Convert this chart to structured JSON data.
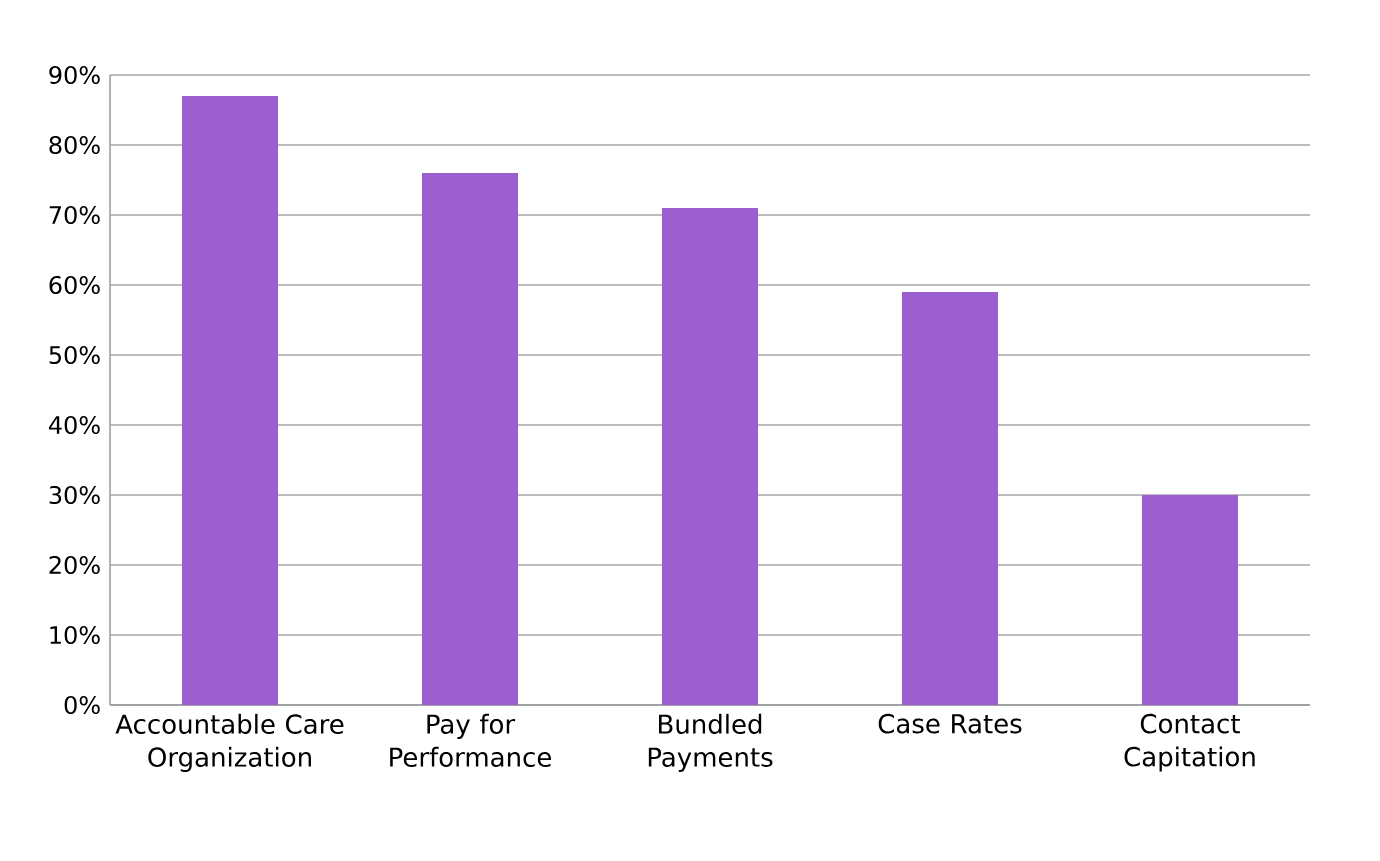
{
  "chart_data": {
    "type": "bar",
    "categories": [
      "Accountable Care Organization",
      "Pay for Performance",
      "Bundled Payments",
      "Case Rates",
      "Contact Capitation"
    ],
    "values": [
      87,
      76,
      71,
      59,
      30
    ],
    "color": "#9b5fd0",
    "ylim": [
      0,
      90
    ],
    "yticks": [
      {
        "value": 0,
        "label": "0%"
      },
      {
        "value": 10,
        "label": "10%"
      },
      {
        "value": 20,
        "label": "20%"
      },
      {
        "value": 30,
        "label": "30%"
      },
      {
        "value": 40,
        "label": "40%"
      },
      {
        "value": 50,
        "label": "50%"
      },
      {
        "value": 60,
        "label": "60%"
      },
      {
        "value": 70,
        "label": "70%"
      },
      {
        "value": 80,
        "label": "80%"
      },
      {
        "value": 90,
        "label": "90%"
      }
    ],
    "grid": "y"
  }
}
